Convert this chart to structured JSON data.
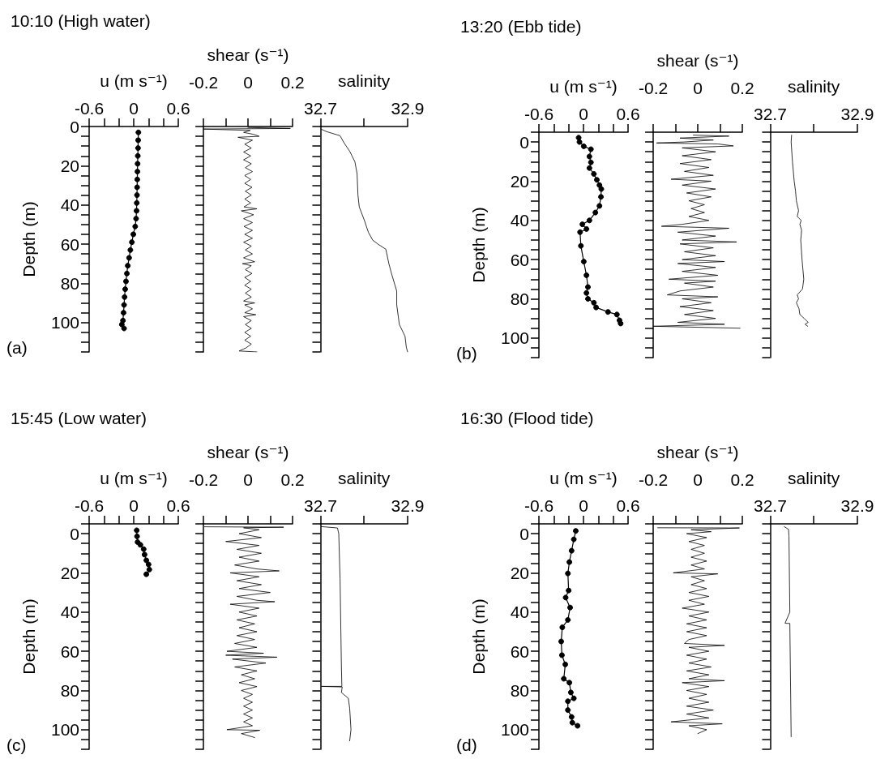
{
  "chart_data": [
    {
      "type": "line",
      "title": "10:10 (High water)",
      "annotations": [
        "(a)"
      ],
      "xlabel": "u (m s⁻¹)",
      "ylabel": "Depth (m)",
      "marker": "circle",
      "xlim": [
        -0.6,
        0.6
      ],
      "xticks": [
        -0.6,
        {
          "value": -0.4,
          "label": null
        },
        {
          "value": -0.2,
          "label": null
        },
        0,
        {
          "value": 0.2,
          "label": null
        },
        {
          "value": 0.4,
          "label": null
        },
        0.6
      ],
      "ylim": [
        115,
        0
      ],
      "yticks": [
        0,
        {
          "value": 5,
          "label": null
        },
        {
          "value": 10,
          "label": null
        },
        {
          "value": 15,
          "label": null
        },
        20,
        {
          "value": 25,
          "label": null
        },
        {
          "value": 30,
          "label": null
        },
        {
          "value": 35,
          "label": null
        },
        40,
        {
          "value": 45,
          "label": null
        },
        {
          "value": 50,
          "label": null
        },
        {
          "value": 55,
          "label": null
        },
        60,
        {
          "value": 65,
          "label": null
        },
        {
          "value": 70,
          "label": null
        },
        {
          "value": 75,
          "label": null
        },
        80,
        {
          "value": 85,
          "label": null
        },
        {
          "value": 90,
          "label": null
        },
        {
          "value": 95,
          "label": null
        },
        100,
        {
          "value": 105,
          "label": null
        },
        {
          "value": 110,
          "label": null
        },
        {
          "value": 115,
          "label": null
        }
      ],
      "series": [
        {
          "color": "#000000",
          "x": [
            0.063,
            0.06,
            0.058,
            0.055,
            0.052,
            0.05,
            0.048,
            0.046,
            0.044,
            0.041,
            0.038,
            0.032,
            0.02,
            -0.005,
            -0.025,
            -0.045,
            -0.062,
            -0.08,
            -0.092,
            -0.104,
            -0.115,
            -0.123,
            -0.13,
            -0.137,
            -0.145,
            -0.16,
            -0.13
          ],
          "values": [
            3,
            7,
            11,
            15,
            19,
            23,
            27,
            31,
            35,
            39,
            43,
            47,
            51,
            55,
            59,
            63,
            67,
            71,
            75,
            79,
            83,
            87,
            91,
            95,
            99,
            101,
            103
          ]
        }
      ]
    },
    {
      "type": "line",
      "xlabel": "shear (s⁻¹)",
      "marker": "none",
      "tick_labels": "x",
      "xlim": [
        -0.2,
        0.2
      ],
      "xticks": [
        -0.2,
        {
          "value": -0.1,
          "label": null
        },
        0,
        {
          "value": 0.1,
          "label": null
        },
        0.2
      ],
      "ylim": [
        115,
        0
      ],
      "yticks": [
        0,
        {
          "value": 5,
          "label": null
        },
        {
          "value": 10,
          "label": null
        },
        {
          "value": 15,
          "label": null
        },
        20,
        {
          "value": 25,
          "label": null
        },
        {
          "value": 30,
          "label": null
        },
        {
          "value": 35,
          "label": null
        },
        40,
        {
          "value": 45,
          "label": null
        },
        {
          "value": 50,
          "label": null
        },
        {
          "value": 55,
          "label": null
        },
        60,
        {
          "value": 65,
          "label": null
        },
        {
          "value": 70,
          "label": null
        },
        {
          "value": 75,
          "label": null
        },
        80,
        {
          "value": 85,
          "label": null
        },
        {
          "value": 90,
          "label": null
        },
        {
          "value": 95,
          "label": null
        },
        100,
        {
          "value": 105,
          "label": null
        },
        {
          "value": 110,
          "label": null
        },
        {
          "value": 115,
          "label": null
        }
      ],
      "series": [
        {
          "color": "#000000",
          "x": [
            0,
            0.19,
            -0.2,
            0.01,
            -0.02,
            0.025,
            0.05,
            -0.045,
            0.02,
            -0.015,
            0.015,
            -0.02,
            0.012,
            -0.02,
            0.015,
            -0.012,
            0.02,
            -0.015,
            0.012,
            -0.015,
            0.018,
            -0.012,
            0.015,
            -0.015,
            0.012,
            -0.018,
            0.04,
            -0.03,
            0.025,
            -0.02,
            0.02,
            -0.018,
            0.02,
            -0.015,
            0.02,
            -0.02,
            0.015,
            -0.012,
            0.02,
            -0.02,
            0.03,
            -0.025,
            0.015,
            -0.012,
            0.018,
            -0.015,
            0.012,
            -0.015,
            0.015,
            -0.012,
            0.015,
            -0.02,
            0.03,
            -0.015,
            0.02,
            -0.015,
            0.035,
            -0.02,
            0.015,
            -0.012,
            0.015,
            -0.015,
            0.012,
            -0.015,
            0.015,
            -0.01,
            -0.04,
            0.04
          ],
          "values": [
            0.5,
            1,
            1.3,
            2,
            3,
            4,
            5,
            5.5,
            7,
            9,
            11,
            13,
            15,
            17,
            19,
            21,
            23,
            25,
            27,
            29,
            31,
            33,
            35,
            37,
            39,
            41,
            42,
            43,
            45,
            47,
            49,
            51,
            53,
            55,
            57,
            59,
            61,
            63,
            65,
            67,
            69,
            70,
            71,
            73,
            75,
            77,
            79,
            81,
            83,
            85,
            87,
            89,
            90,
            91,
            93,
            95,
            96,
            97,
            99,
            101,
            103,
            105,
            107,
            109,
            111,
            113,
            114.5,
            115
          ]
        }
      ]
    },
    {
      "type": "line",
      "xlabel": "salinity",
      "marker": "none",
      "tick_labels": "x",
      "xlim": [
        32.7,
        32.9
      ],
      "xticks": [
        32.7,
        {
          "value": 32.8,
          "label": null
        },
        32.9
      ],
      "ylim": [
        115,
        0
      ],
      "yticks": [
        0,
        {
          "value": 5,
          "label": null
        },
        {
          "value": 10,
          "label": null
        },
        {
          "value": 15,
          "label": null
        },
        20,
        {
          "value": 25,
          "label": null
        },
        {
          "value": 30,
          "label": null
        },
        {
          "value": 35,
          "label": null
        },
        40,
        {
          "value": 45,
          "label": null
        },
        {
          "value": 50,
          "label": null
        },
        {
          "value": 55,
          "label": null
        },
        60,
        {
          "value": 65,
          "label": null
        },
        {
          "value": 70,
          "label": null
        },
        {
          "value": 75,
          "label": null
        },
        80,
        {
          "value": 85,
          "label": null
        },
        {
          "value": 90,
          "label": null
        },
        {
          "value": 95,
          "label": null
        },
        100,
        {
          "value": 105,
          "label": null
        },
        {
          "value": 110,
          "label": null
        },
        {
          "value": 115,
          "label": null
        }
      ],
      "series": [
        {
          "color": "#000000",
          "x": [
            32.702,
            32.714,
            32.745,
            32.754,
            32.767,
            32.779,
            32.784,
            32.786,
            32.789,
            32.801,
            32.81,
            32.82,
            32.832,
            32.85,
            32.857,
            32.863,
            32.875,
            32.875,
            32.881,
            32.894,
            32.897,
            32.9
          ],
          "values": [
            1.4,
            2.6,
            4.7,
            8.3,
            12.6,
            18,
            24,
            35,
            41,
            48,
            54,
            58,
            60,
            62.6,
            70,
            75,
            84,
            91,
            101,
            107,
            112.6,
            115
          ]
        }
      ]
    },
    {
      "type": "line",
      "title": "13:20 (Ebb tide)",
      "annotations": [
        "(b)"
      ],
      "xlabel": "u (m s⁻¹)",
      "ylabel": "Depth (m)",
      "marker": "circle",
      "xlim": [
        -0.6,
        0.6
      ],
      "xticks": [
        -0.6,
        {
          "value": -0.4,
          "label": null
        },
        {
          "value": -0.2,
          "label": null
        },
        0,
        {
          "value": 0.2,
          "label": null
        },
        {
          "value": 0.4,
          "label": null
        },
        0.6
      ],
      "ylim": [
        110,
        -5
      ],
      "yticks": [
        {
          "value": -5,
          "label": null
        },
        0,
        {
          "value": 5,
          "label": null
        },
        {
          "value": 10,
          "label": null
        },
        {
          "value": 15,
          "label": null
        },
        20,
        {
          "value": 25,
          "label": null
        },
        {
          "value": 30,
          "label": null
        },
        {
          "value": 35,
          "label": null
        },
        40,
        {
          "value": 45,
          "label": null
        },
        {
          "value": 50,
          "label": null
        },
        {
          "value": 55,
          "label": null
        },
        60,
        {
          "value": 65,
          "label": null
        },
        {
          "value": 70,
          "label": null
        },
        {
          "value": 75,
          "label": null
        },
        80,
        {
          "value": 85,
          "label": null
        },
        {
          "value": 90,
          "label": null
        },
        {
          "value": 95,
          "label": null
        },
        100,
        {
          "value": 105,
          "label": null
        },
        {
          "value": 110,
          "label": null
        }
      ],
      "series": [
        {
          "color": "#000000",
          "x": [
            -0.065,
            -0.054,
            0.004,
            0.1,
            0.08,
            0.1,
            0.08,
            0.14,
            0.18,
            0.215,
            0.24,
            0.235,
            0.215,
            0.16,
            0.08,
            -0.015,
            0.04,
            -0.046,
            -0.035,
            0.004,
            0.04,
            0.06,
            0.04,
            0.06,
            0.14,
            0.17,
            0.33,
            0.45,
            0.485,
            0.5
          ],
          "values": [
            -2.2,
            0,
            2.2,
            3.7,
            7.4,
            10.4,
            13.3,
            16.3,
            19.3,
            22,
            24,
            28,
            32.6,
            36,
            40,
            42,
            44.4,
            46,
            53,
            61,
            68,
            74,
            77,
            80,
            82,
            84.4,
            86.7,
            88,
            91,
            92.6
          ]
        }
      ]
    },
    {
      "type": "line",
      "xlabel": "shear (s⁻¹)",
      "marker": "none",
      "tick_labels": "x",
      "xlim": [
        -0.2,
        0.2
      ],
      "xticks": [
        -0.2,
        {
          "value": -0.1,
          "label": null
        },
        0,
        {
          "value": 0.1,
          "label": null
        },
        0.2
      ],
      "ylim": [
        110,
        -5
      ],
      "yticks": [
        {
          "value": -5,
          "label": null
        },
        0,
        {
          "value": 5,
          "label": null
        },
        {
          "value": 10,
          "label": null
        },
        {
          "value": 15,
          "label": null
        },
        20,
        {
          "value": 25,
          "label": null
        },
        {
          "value": 30,
          "label": null
        },
        {
          "value": 35,
          "label": null
        },
        40,
        {
          "value": 45,
          "label": null
        },
        {
          "value": 50,
          "label": null
        },
        {
          "value": 55,
          "label": null
        },
        60,
        {
          "value": 65,
          "label": null
        },
        {
          "value": 70,
          "label": null
        },
        {
          "value": 75,
          "label": null
        },
        80,
        {
          "value": 85,
          "label": null
        },
        {
          "value": 90,
          "label": null
        },
        {
          "value": 95,
          "label": null
        },
        100,
        {
          "value": 105,
          "label": null
        },
        {
          "value": 110,
          "label": null
        }
      ],
      "series": [
        {
          "color": "#000000",
          "x": [
            -0.02,
            0.14,
            -0.08,
            0.07,
            -0.06,
            -0.185,
            0.09,
            0.16,
            -0.07,
            0.08,
            -0.07,
            0.06,
            -0.08,
            0.05,
            -0.06,
            0.07,
            -0.12,
            0.06,
            -0.07,
            0.08,
            -0.05,
            0.06,
            -0.04,
            0.03,
            -0.03,
            0.03,
            -0.04,
            0.05,
            -0.07,
            -0.163,
            0.14,
            -0.09,
            0.08,
            -0.07,
            0.174,
            -0.08,
            0.07,
            -0.06,
            0.08,
            -0.07,
            0.12,
            -0.09,
            0.08,
            -0.07,
            0.09,
            -0.13,
            0.08,
            -0.06,
            0.07,
            -0.08,
            -0.137,
            0.09,
            -0.07,
            0.06,
            -0.08,
            0.07,
            -0.06,
            0.08,
            -0.09,
            0.12,
            -0.2,
            0.19
          ],
          "values": [
            -3.5,
            -3,
            -2,
            -1,
            0,
            0.5,
            1,
            2,
            3,
            5,
            7,
            9,
            11,
            13,
            15,
            17,
            19,
            20,
            22,
            24,
            26,
            28,
            30,
            32,
            34,
            36,
            38,
            40,
            42,
            43,
            44,
            46,
            48,
            50,
            51,
            52,
            54,
            56,
            58,
            60,
            61,
            62,
            64,
            66,
            68,
            70,
            71,
            72,
            74,
            76,
            78,
            79,
            80,
            82,
            84,
            86,
            88,
            90,
            92,
            93,
            94,
            95
          ]
        }
      ]
    },
    {
      "type": "line",
      "xlabel": "salinity",
      "marker": "none",
      "tick_labels": "x",
      "xlim": [
        32.7,
        32.9
      ],
      "xticks": [
        32.7,
        {
          "value": 32.8,
          "label": null
        },
        32.9
      ],
      "ylim": [
        110,
        -5
      ],
      "yticks": [
        {
          "value": -5,
          "label": null
        },
        0,
        {
          "value": 5,
          "label": null
        },
        {
          "value": 10,
          "label": null
        },
        {
          "value": 15,
          "label": null
        },
        20,
        {
          "value": 25,
          "label": null
        },
        {
          "value": 30,
          "label": null
        },
        {
          "value": 35,
          "label": null
        },
        40,
        {
          "value": 45,
          "label": null
        },
        {
          "value": 50,
          "label": null
        },
        {
          "value": 55,
          "label": null
        },
        60,
        {
          "value": 65,
          "label": null
        },
        {
          "value": 70,
          "label": null
        },
        {
          "value": 75,
          "label": null
        },
        80,
        {
          "value": 85,
          "label": null
        },
        {
          "value": 90,
          "label": null
        },
        {
          "value": 95,
          "label": null
        },
        100,
        {
          "value": 105,
          "label": null
        },
        {
          "value": 110,
          "label": null
        }
      ],
      "series": [
        {
          "color": "#000000",
          "x": [
            32.749,
            32.748,
            32.751,
            32.755,
            32.758,
            32.76,
            32.765,
            32.762,
            32.771,
            32.768,
            32.772,
            32.77,
            32.773,
            32.777,
            32.774,
            32.762,
            32.765,
            32.76,
            32.766,
            32.768,
            32.778,
            32.787,
            32.78,
            32.786
          ],
          "values": [
            -3.5,
            0,
            10,
            20,
            25,
            30,
            35,
            38,
            40,
            42,
            45,
            50,
            60,
            70,
            75,
            78,
            80,
            82,
            85,
            88,
            90,
            92,
            93,
            94
          ]
        }
      ]
    },
    {
      "type": "line",
      "title": "15:45 (Low water)",
      "annotations": [
        "(c)"
      ],
      "xlabel": "u (m s⁻¹)",
      "ylabel": "Depth (m)",
      "marker": "circle",
      "xlim": [
        -0.6,
        0.6
      ],
      "xticks": [
        -0.6,
        {
          "value": -0.4,
          "label": null
        },
        {
          "value": -0.2,
          "label": null
        },
        0,
        {
          "value": 0.2,
          "label": null
        },
        {
          "value": 0.4,
          "label": null
        },
        0.6
      ],
      "ylim": [
        110,
        -5
      ],
      "yticks": [
        {
          "value": -5,
          "label": null
        },
        0,
        {
          "value": 5,
          "label": null
        },
        {
          "value": 10,
          "label": null
        },
        {
          "value": 15,
          "label": null
        },
        20,
        {
          "value": 25,
          "label": null
        },
        {
          "value": 30,
          "label": null
        },
        {
          "value": 35,
          "label": null
        },
        40,
        {
          "value": 45,
          "label": null
        },
        {
          "value": 50,
          "label": null
        },
        {
          "value": 55,
          "label": null
        },
        60,
        {
          "value": 65,
          "label": null
        },
        {
          "value": 70,
          "label": null
        },
        {
          "value": 75,
          "label": null
        },
        80,
        {
          "value": 85,
          "label": null
        },
        {
          "value": 90,
          "label": null
        },
        {
          "value": 95,
          "label": null
        },
        100,
        {
          "value": 105,
          "label": null
        },
        {
          "value": 110,
          "label": null
        }
      ],
      "series": [
        {
          "color": "#000000",
          "x": [
            0.04,
            0.045,
            0.052,
            0.09,
            0.134,
            0.146,
            0.17,
            0.2,
            0.21,
            0.17
          ],
          "values": [
            -1.7,
            1.4,
            4.3,
            5.7,
            7.9,
            10.7,
            13.6,
            15.7,
            18.3,
            20.7
          ]
        }
      ]
    },
    {
      "type": "line",
      "xlabel": "shear (s⁻¹)",
      "marker": "none",
      "tick_labels": "x",
      "xlim": [
        -0.2,
        0.2
      ],
      "xticks": [
        -0.2,
        {
          "value": -0.1,
          "label": null
        },
        0,
        {
          "value": 0.1,
          "label": null
        },
        0.2
      ],
      "ylim": [
        110,
        -5
      ],
      "yticks": [
        {
          "value": -5,
          "label": null
        },
        0,
        {
          "value": 5,
          "label": null
        },
        {
          "value": 10,
          "label": null
        },
        {
          "value": 15,
          "label": null
        },
        20,
        {
          "value": 25,
          "label": null
        },
        {
          "value": 30,
          "label": null
        },
        {
          "value": 35,
          "label": null
        },
        40,
        {
          "value": 45,
          "label": null
        },
        {
          "value": 50,
          "label": null
        },
        {
          "value": 55,
          "label": null
        },
        60,
        {
          "value": 65,
          "label": null
        },
        {
          "value": 70,
          "label": null
        },
        {
          "value": 75,
          "label": null
        },
        80,
        {
          "value": 85,
          "label": null
        },
        {
          "value": 90,
          "label": null
        },
        {
          "value": 95,
          "label": null
        },
        100,
        {
          "value": 105,
          "label": null
        },
        {
          "value": 110,
          "label": null
        }
      ],
      "series": [
        {
          "color": "#000000",
          "x": [
            -0.195,
            0.16,
            -0.02,
            0.05,
            -0.04,
            0.06,
            -0.1,
            0.05,
            -0.05,
            0.06,
            -0.04,
            0.05,
            -0.06,
            0.04,
            0.14,
            -0.08,
            0.05,
            -0.05,
            0.06,
            -0.04,
            0.1,
            -0.05,
            0.04,
            0.12,
            -0.08,
            0.05,
            -0.04,
            0.04,
            -0.05,
            0.03,
            -0.04,
            0.04,
            -0.05,
            0.03,
            -0.06,
            0.04,
            -0.095,
            0.07,
            -0.1,
            0.13,
            -0.07,
            0.08,
            -0.06,
            0.04,
            -0.03,
            0.03,
            -0.04,
            0.04,
            -0.03,
            0.02,
            -0.02,
            0.02,
            -0.02,
            0.02,
            -0.02,
            0.02,
            -0.02,
            0.02,
            -0.095,
            0.053,
            -0.03,
            0.03
          ],
          "values": [
            -3.5,
            -3.3,
            -3,
            -2,
            0,
            2,
            4,
            6,
            8,
            10,
            12,
            14,
            16,
            18,
            19,
            20,
            22,
            24,
            26,
            28,
            30,
            32,
            34,
            34.7,
            36,
            38,
            40,
            42,
            44,
            46,
            48,
            50,
            52,
            54,
            56,
            58,
            60,
            61,
            62,
            63,
            64,
            66,
            68,
            70,
            72,
            74,
            76,
            78,
            80,
            82,
            84,
            86,
            88,
            90,
            92,
            94,
            96,
            98,
            100,
            100.3,
            102,
            104
          ]
        }
      ]
    },
    {
      "type": "line",
      "xlabel": "salinity",
      "marker": "none",
      "tick_labels": "x",
      "xlim": [
        32.7,
        32.9
      ],
      "xticks": [
        32.7,
        {
          "value": 32.8,
          "label": null
        },
        32.9
      ],
      "ylim": [
        110,
        -5
      ],
      "yticks": [
        {
          "value": -5,
          "label": null
        },
        0,
        {
          "value": 5,
          "label": null
        },
        {
          "value": 10,
          "label": null
        },
        {
          "value": 15,
          "label": null
        },
        20,
        {
          "value": 25,
          "label": null
        },
        {
          "value": 30,
          "label": null
        },
        {
          "value": 35,
          "label": null
        },
        40,
        {
          "value": 45,
          "label": null
        },
        {
          "value": 50,
          "label": null
        },
        {
          "value": 55,
          "label": null
        },
        60,
        {
          "value": 65,
          "label": null
        },
        {
          "value": 70,
          "label": null
        },
        {
          "value": 75,
          "label": null
        },
        80,
        {
          "value": 85,
          "label": null
        },
        {
          "value": 90,
          "label": null
        },
        {
          "value": 95,
          "label": null
        },
        100,
        {
          "value": 105,
          "label": null
        },
        {
          "value": 110,
          "label": null
        }
      ],
      "series": [
        {
          "color": "#000000",
          "x": [
            32.702,
            32.739,
            32.742,
            32.745,
            32.748,
            32.749,
            32.749,
            32.702,
            32.75,
            32.748,
            32.764,
            32.767,
            32.77,
            32.767
          ],
          "values": [
            -3.6,
            -2.9,
            0,
            23,
            67,
            77,
            77.9,
            77.9,
            78.2,
            81,
            84,
            89,
            100,
            105.7
          ]
        }
      ]
    },
    {
      "type": "line",
      "title": "16:30 (Flood tide)",
      "annotations": [
        "(d)"
      ],
      "xlabel": "u (m s⁻¹)",
      "ylabel": "Depth (m)",
      "marker": "circle",
      "xlim": [
        -0.6,
        0.6
      ],
      "xticks": [
        -0.6,
        {
          "value": -0.4,
          "label": null
        },
        {
          "value": -0.2,
          "label": null
        },
        0,
        {
          "value": 0.2,
          "label": null
        },
        {
          "value": 0.4,
          "label": null
        },
        0.6
      ],
      "ylim": [
        110,
        -5
      ],
      "yticks": [
        {
          "value": -5,
          "label": null
        },
        0,
        {
          "value": 5,
          "label": null
        },
        {
          "value": 10,
          "label": null
        },
        {
          "value": 15,
          "label": null
        },
        20,
        {
          "value": 25,
          "label": null
        },
        {
          "value": 30,
          "label": null
        },
        {
          "value": 35,
          "label": null
        },
        40,
        {
          "value": 45,
          "label": null
        },
        {
          "value": 50,
          "label": null
        },
        {
          "value": 55,
          "label": null
        },
        60,
        {
          "value": 65,
          "label": null
        },
        {
          "value": 70,
          "label": null
        },
        {
          "value": 75,
          "label": null
        },
        80,
        {
          "value": 85,
          "label": null
        },
        {
          "value": 90,
          "label": null
        },
        {
          "value": 95,
          "label": null
        },
        100,
        {
          "value": 105,
          "label": null
        },
        {
          "value": 110,
          "label": null
        }
      ],
      "series": [
        {
          "color": "#000000",
          "x": [
            -0.104,
            -0.13,
            -0.16,
            -0.19,
            -0.21,
            -0.2,
            -0.24,
            -0.18,
            -0.21,
            -0.285,
            -0.3,
            -0.29,
            -0.245,
            -0.265,
            -0.19,
            -0.17,
            -0.13,
            -0.21,
            -0.21,
            -0.16,
            -0.15,
            -0.08
          ],
          "values": [
            -1.4,
            2.9,
            8.7,
            14.5,
            20.3,
            29,
            32.6,
            37.7,
            44,
            47.8,
            55,
            62,
            66.7,
            74,
            76,
            81,
            84,
            85.5,
            90,
            93.5,
            96.4,
            98
          ]
        }
      ]
    },
    {
      "type": "line",
      "xlabel": "shear (s⁻¹)",
      "marker": "none",
      "tick_labels": "x",
      "xlim": [
        -0.2,
        0.2
      ],
      "xticks": [
        -0.2,
        {
          "value": -0.1,
          "label": null
        },
        0,
        {
          "value": 0.1,
          "label": null
        },
        0.2
      ],
      "ylim": [
        110,
        -5
      ],
      "yticks": [
        {
          "value": -5,
          "label": null
        },
        0,
        {
          "value": 5,
          "label": null
        },
        {
          "value": 10,
          "label": null
        },
        {
          "value": 15,
          "label": null
        },
        20,
        {
          "value": 25,
          "label": null
        },
        {
          "value": 30,
          "label": null
        },
        {
          "value": 35,
          "label": null
        },
        40,
        {
          "value": 45,
          "label": null
        },
        {
          "value": 50,
          "label": null
        },
        {
          "value": 55,
          "label": null
        },
        60,
        {
          "value": 65,
          "label": null
        },
        {
          "value": 70,
          "label": null
        },
        {
          "value": 75,
          "label": null
        },
        80,
        {
          "value": 85,
          "label": null
        },
        {
          "value": 90,
          "label": null
        },
        {
          "value": 95,
          "label": null
        },
        100,
        {
          "value": 105,
          "label": null
        },
        {
          "value": 110,
          "label": null
        }
      ],
      "series": [
        {
          "color": "#000000",
          "x": [
            -0.18,
            0.187,
            -0.03,
            0.06,
            -0.05,
            0.04,
            -0.04,
            0.03,
            -0.03,
            0.03,
            -0.03,
            0.04,
            -0.03,
            0.03,
            -0.11,
            0.09,
            -0.03,
            0.03,
            -0.03,
            0.04,
            -0.04,
            0.05,
            -0.04,
            0.03,
            -0.07,
            0.05,
            -0.04,
            0.04,
            -0.05,
            0.04,
            -0.05,
            0.04,
            -0.04,
            -0.06,
            0.12,
            -0.04,
            0.05,
            -0.05,
            0.04,
            -0.04,
            0.06,
            -0.05,
            0.05,
            -0.04,
            0.12,
            -0.07,
            0.05,
            -0.05,
            0.04,
            -0.04,
            0.05,
            -0.05,
            0.07,
            -0.05,
            0.05,
            -0.12,
            0.11,
            -0.04,
            0.04,
            0
          ],
          "values": [
            -3,
            -2.9,
            -2,
            -1,
            0,
            2,
            4,
            6,
            8,
            10,
            12,
            14,
            16,
            18,
            20,
            20.5,
            22,
            24,
            26,
            28,
            30,
            32,
            34,
            36,
            38,
            40,
            42,
            44,
            46,
            48,
            50,
            52,
            54,
            56,
            57,
            58,
            60,
            62,
            64,
            66,
            68,
            70,
            72,
            74,
            75,
            76,
            78,
            80,
            82,
            84,
            86,
            88,
            90,
            92,
            94,
            96,
            97,
            98,
            100,
            102
          ]
        }
      ]
    },
    {
      "type": "line",
      "xlabel": "salinity",
      "marker": "none",
      "tick_labels": "x",
      "xlim": [
        32.7,
        32.9
      ],
      "xticks": [
        32.7,
        {
          "value": 32.8,
          "label": null
        },
        32.9
      ],
      "ylim": [
        110,
        -5
      ],
      "yticks": [
        {
          "value": -5,
          "label": null
        },
        0,
        {
          "value": 5,
          "label": null
        },
        {
          "value": 10,
          "label": null
        },
        {
          "value": 15,
          "label": null
        },
        20,
        {
          "value": 25,
          "label": null
        },
        {
          "value": 30,
          "label": null
        },
        {
          "value": 35,
          "label": null
        },
        40,
        {
          "value": 45,
          "label": null
        },
        {
          "value": 50,
          "label": null
        },
        {
          "value": 55,
          "label": null
        },
        60,
        {
          "value": 65,
          "label": null
        },
        {
          "value": 70,
          "label": null
        },
        {
          "value": 75,
          "label": null
        },
        80,
        {
          "value": 85,
          "label": null
        },
        {
          "value": 90,
          "label": null
        },
        {
          "value": 95,
          "label": null
        },
        100,
        {
          "value": 105,
          "label": null
        },
        {
          "value": 110,
          "label": null
        }
      ],
      "series": [
        {
          "color": "#000000",
          "x": [
            32.732,
            32.742,
            32.743,
            32.745,
            32.734,
            32.745,
            32.745,
            32.747,
            32.748
          ],
          "values": [
            -3.6,
            -2.2,
            1.4,
            40,
            45.7,
            45.8,
            46,
            84,
            103.6
          ]
        }
      ]
    }
  ]
}
